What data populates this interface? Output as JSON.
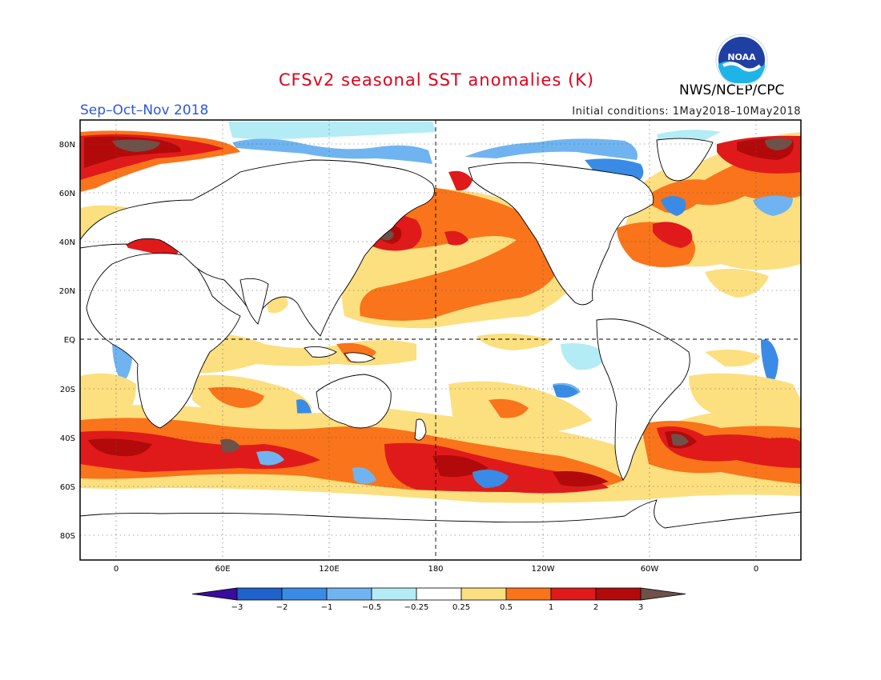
{
  "header": {
    "title": "CFSv2 seasonal SST anomalies (K)",
    "season": "Sep–Oct–Nov 2018",
    "initial_conditions": "Initial conditions: 1May2018–10May2018",
    "agency": "NWS/NCEP/CPC",
    "logo_text": "NOAA"
  },
  "map": {
    "lat_labels": [
      "80N",
      "60N",
      "40N",
      "20N",
      "EQ",
      "20S",
      "40S",
      "60S",
      "80S"
    ],
    "lon_labels": [
      "0",
      "60E",
      "120E",
      "180",
      "120W",
      "60W",
      "0"
    ]
  },
  "colorbar": {
    "tick_labels": [
      "−3",
      "−2",
      "−1",
      "−0.5",
      "−0.25",
      "0.25",
      "0.5",
      "1",
      "2",
      "3"
    ],
    "colors": [
      "#3a0c9e",
      "#1f62c9",
      "#3a8be5",
      "#6fb4f0",
      "#b3ecf4",
      "#ffffff",
      "#fcdf7f",
      "#f9741a",
      "#e01a1a",
      "#b20a0a",
      "#6e5148"
    ]
  }
}
